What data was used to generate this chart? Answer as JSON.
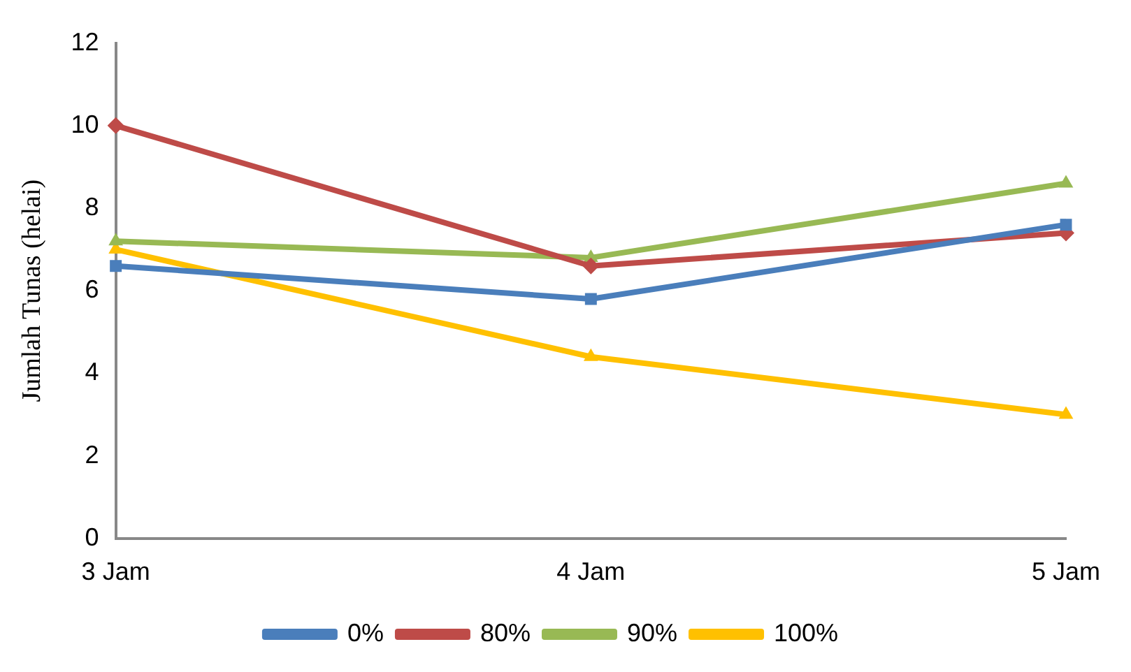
{
  "chart_data": {
    "type": "line",
    "ylabel": "Jumlah Tunas (helai)",
    "categories": [
      "3 Jam",
      "4 Jam",
      "5 Jam"
    ],
    "series": [
      {
        "name": "0%",
        "color": "#4a7ebb",
        "marker": "square",
        "values": [
          6.6,
          5.8,
          7.6
        ]
      },
      {
        "name": "80%",
        "color": "#be4b48",
        "marker": "diamond",
        "values": [
          10,
          6.6,
          7.4
        ]
      },
      {
        "name": "90%",
        "color": "#98b954",
        "marker": "triangle",
        "values": [
          7.2,
          6.8,
          8.6
        ]
      },
      {
        "name": "100%",
        "color": "#ffc000",
        "marker": "triangle",
        "values": [
          7,
          4.4,
          3
        ]
      }
    ],
    "ylim": [
      0,
      12
    ],
    "yticks": [
      0,
      2,
      4,
      6,
      8,
      10,
      12
    ],
    "grid": false,
    "legend": "bottom",
    "line_style": "solid"
  }
}
